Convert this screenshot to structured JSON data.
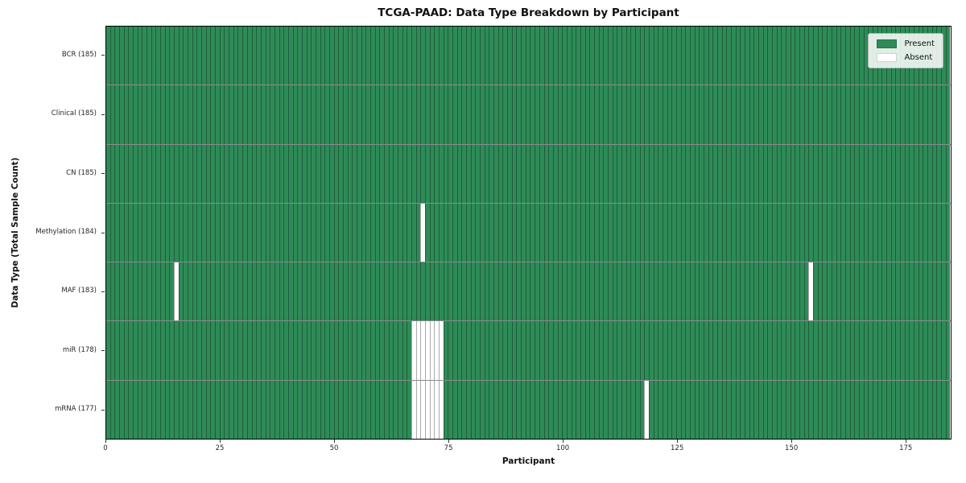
{
  "chart_data": {
    "type": "heatmap",
    "title": "TCGA-PAAD: Data Type Breakdown by Participant",
    "xlabel": "Participant",
    "ylabel": "Data Type (Total Sample Count)",
    "n_participants": 185,
    "xlim": [
      0,
      185
    ],
    "x_ticks": [
      0,
      25,
      50,
      75,
      100,
      125,
      150,
      175
    ],
    "grid": false,
    "legend_position": "upper right",
    "rows": [
      {
        "name": "BCR",
        "total": 185,
        "tick_label": "BCR (185)",
        "absent_participants": []
      },
      {
        "name": "Clinical",
        "total": 185,
        "tick_label": "Clinical (185)",
        "absent_participants": []
      },
      {
        "name": "CN",
        "total": 185,
        "tick_label": "CN (185)",
        "absent_participants": []
      },
      {
        "name": "Methylation",
        "total": 184,
        "tick_label": "Methylation (184)",
        "absent_participants": [
          69
        ]
      },
      {
        "name": "MAF",
        "total": 183,
        "tick_label": "MAF (183)",
        "absent_participants": [
          15,
          154
        ]
      },
      {
        "name": "miR",
        "total": 178,
        "tick_label": "miR (178)",
        "absent_participants": [
          67,
          68,
          69,
          70,
          71,
          72,
          73
        ]
      },
      {
        "name": "mRNA",
        "total": 177,
        "tick_label": "mRNA (177)",
        "absent_participants": [
          67,
          68,
          69,
          70,
          71,
          72,
          73,
          118
        ]
      }
    ],
    "legend": [
      {
        "label": "Present",
        "color": "#2e8b57"
      },
      {
        "label": "Absent",
        "color": "#ffffff"
      }
    ],
    "colors": {
      "present": "#2e8b57",
      "absent": "#ffffff",
      "cell_edge": "rgba(0,0,0,0.33)",
      "row_edge": "rgba(0,0,0,0.45)",
      "plot_border": "#000000",
      "background": "#ffffff"
    }
  }
}
